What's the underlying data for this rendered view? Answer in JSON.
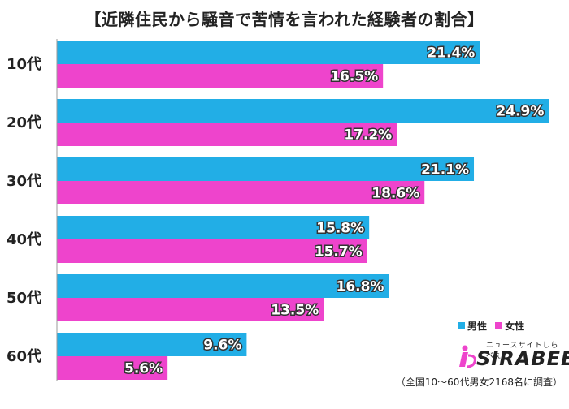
{
  "chart_data": {
    "type": "bar",
    "orientation": "horizontal",
    "title": "【近隣住民から騒音で苦情を言われた経験者の割合】",
    "categories": [
      "10代",
      "20代",
      "30代",
      "40代",
      "50代",
      "60代"
    ],
    "series": [
      {
        "name": "男性",
        "color": "#22aee6",
        "values": [
          21.4,
          24.9,
          21.1,
          15.8,
          16.8,
          9.6
        ]
      },
      {
        "name": "女性",
        "color": "#ee44cc",
        "values": [
          16.5,
          17.2,
          18.6,
          15.7,
          13.5,
          5.6
        ]
      }
    ],
    "value_suffix": "%",
    "xlim": [
      0,
      25.5
    ],
    "grid": false,
    "legend_position": "bottom-right",
    "note": "（全国10～60代男女2168名に調査）"
  },
  "logo": {
    "sub": "ニュースサイトしらべぇ",
    "main": "SIRABEE",
    "icon": "sirabee-logo-icon"
  }
}
